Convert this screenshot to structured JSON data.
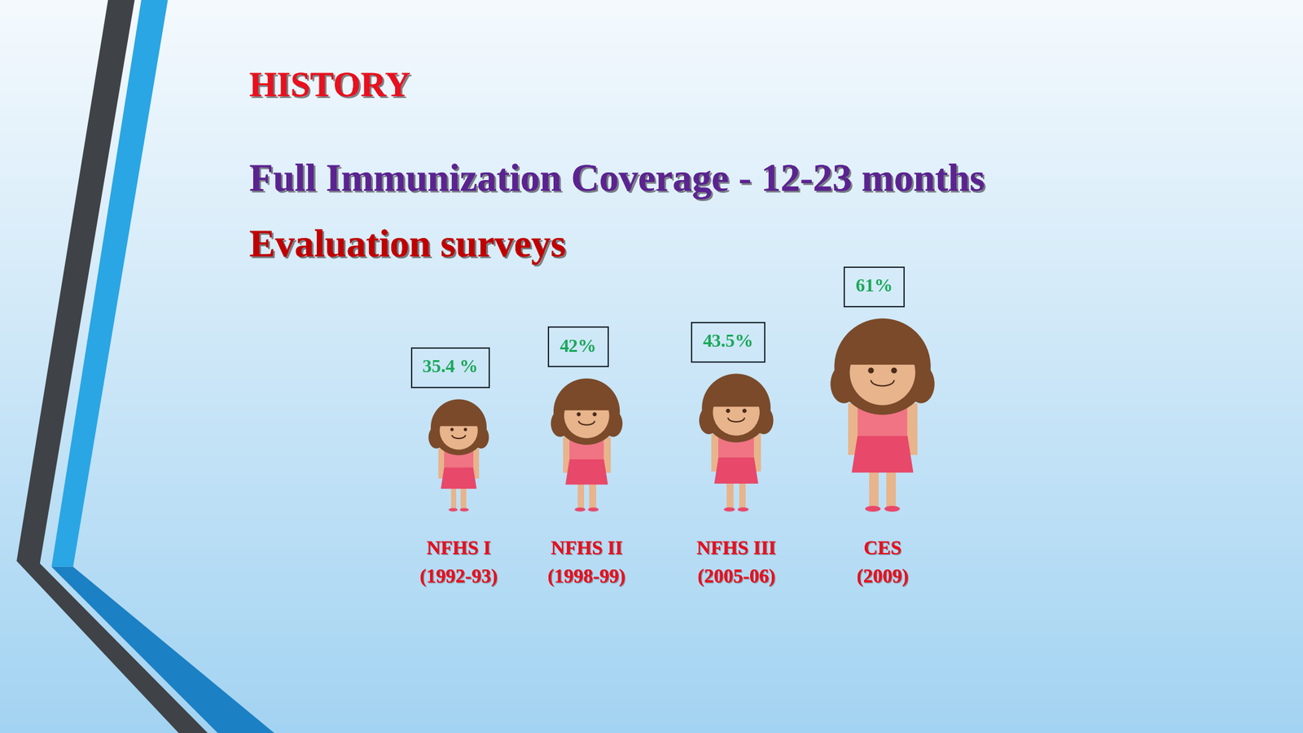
{
  "chart_data": {
    "type": "pictogram",
    "title": "HISTORY",
    "subtitle": "Full Immunization Coverage - 12-23 months",
    "caption": "Evaluation surveys",
    "categories": [
      "NFHS I\n(1992-93)",
      "NFHS II\n(1998-99)",
      "NFHS III\n(2005-06)",
      "CES\n(2009)"
    ],
    "values": [
      35.4,
      42,
      43.5,
      61
    ],
    "value_labels": [
      "35.4 %",
      "42%",
      "43.5%",
      "61%"
    ],
    "data_labels": true
  }
}
